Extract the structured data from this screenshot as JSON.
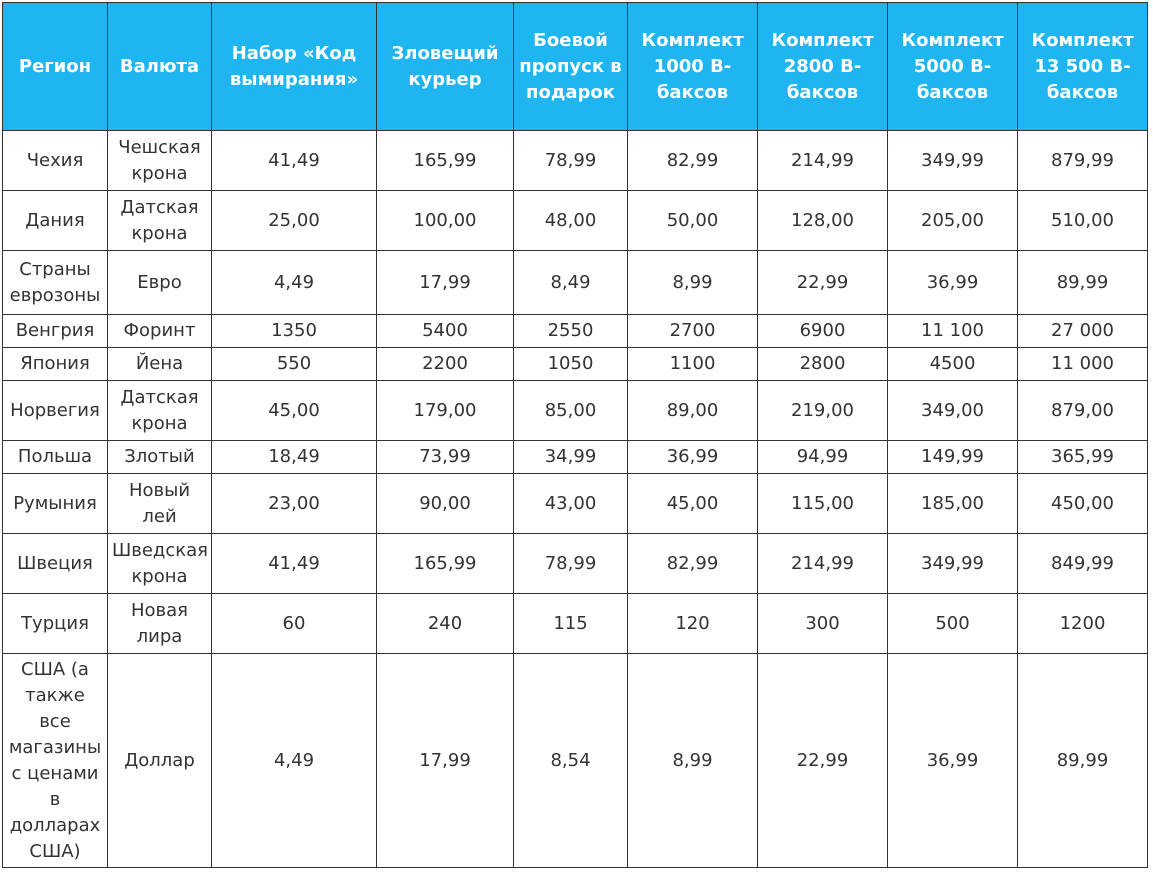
{
  "table": {
    "headers": [
      "Регион",
      "Валюта",
      "Набор «Код вымирания»",
      "Зловещий курьер",
      "Боевой пропуск в подарок",
      "Комплект 1000 В-баксов",
      "Комплект 2800 В-баксов",
      "Комплект 5000 В-баксов",
      "Комплект 13 500 В-баксов"
    ],
    "rows": [
      [
        "Чехия",
        "Чешская крона",
        "41,49",
        "165,99",
        "78,99",
        "82,99",
        "214,99",
        "349,99",
        "879,99"
      ],
      [
        "Дания",
        "Датская крона",
        "25,00",
        "100,00",
        "48,00",
        "50,00",
        "128,00",
        "205,00",
        "510,00"
      ],
      [
        "Страны еврозоны",
        "Евро",
        "4,49",
        "17,99",
        "8,49",
        "8,99",
        "22,99",
        "36,99",
        "89,99"
      ],
      [
        "Венгрия",
        "Форинт",
        "1350",
        "5400",
        "2550",
        "2700",
        "6900",
        "11 100",
        "27 000"
      ],
      [
        "Япония",
        "Йена",
        "550",
        "2200",
        "1050",
        "1100",
        "2800",
        "4500",
        "11 000"
      ],
      [
        "Норвегия",
        "Датская крона",
        "45,00",
        "179,00",
        "85,00",
        "89,00",
        "219,00",
        "349,00",
        "879,00"
      ],
      [
        "Польша",
        "Злотый",
        "18,49",
        "73,99",
        "34,99",
        "36,99",
        "94,99",
        "149,99",
        "365,99"
      ],
      [
        "Румыния",
        "Новый лей",
        "23,00",
        "90,00",
        "43,00",
        "45,00",
        "115,00",
        "185,00",
        "450,00"
      ],
      [
        "Швеция",
        "Шведская крона",
        "41,49",
        "165,99",
        "78,99",
        "82,99",
        "214,99",
        "349,99",
        "849,99"
      ],
      [
        "Турция",
        "Новая лира",
        "60",
        "240",
        "115",
        "120",
        "300",
        "500",
        "1200"
      ],
      [
        "США (а также все магазины с ценами в долларах США)",
        "Доллар",
        "4,49",
        "17,99",
        "8,54",
        "8,99",
        "22,99",
        "36,99",
        "89,99"
      ]
    ]
  },
  "colors": {
    "header_background": "#1fb5f0",
    "header_text": "#ffffff",
    "cell_text": "#333333",
    "border": "#333333"
  }
}
